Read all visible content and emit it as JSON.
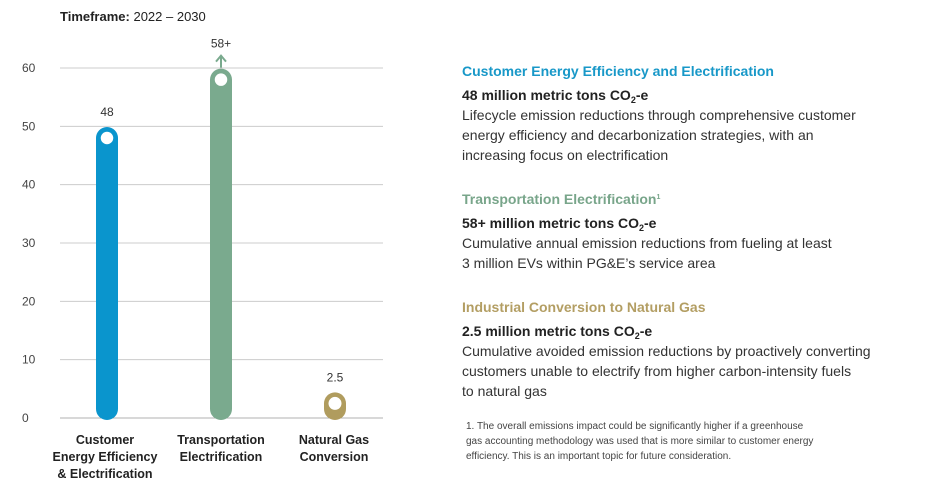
{
  "timeframe": {
    "label": "Timeframe:",
    "value": "2022 – 2030"
  },
  "colors": {
    "blue": "#0A95CD",
    "green": "#7AAA8E",
    "gold": "#B09C5E",
    "grid": "#cccccc"
  },
  "chart_data": {
    "type": "bar",
    "categories": [
      [
        "Customer",
        "Energy Efficiency",
        "& Electrification"
      ],
      [
        "Transportation",
        "Electrification"
      ],
      [
        "Natural Gas",
        "Conversion"
      ]
    ],
    "values": [
      48,
      58,
      2.5
    ],
    "data_labels": [
      "48",
      "58+",
      "2.5"
    ],
    "ylim": [
      0,
      60
    ],
    "yticks": [
      0,
      10,
      20,
      30,
      40,
      50,
      60
    ],
    "grid": true
  },
  "sections": [
    {
      "heading": "Customer Energy Efficiency and Electrification",
      "amount_a": "48 million metric tons CO",
      "amount_sub": "2",
      "amount_b": "-e",
      "desc_lines": [
        "Lifecycle emission reductions through comprehensive customer",
        "energy efficiency and decarbonization strategies, with an",
        "increasing focus on electrification"
      ]
    },
    {
      "heading": "Transportation Electrification",
      "heading_sup": "1",
      "amount_a": "58+ million metric tons CO",
      "amount_sub": "2",
      "amount_b": "-e",
      "desc_lines": [
        "Cumulative annual emission reductions from fueling at least",
        "3 million EVs within PG&E’s service area"
      ]
    },
    {
      "heading": "Industrial Conversion to Natural Gas",
      "amount_a": "2.5 million metric tons CO",
      "amount_sub": "2",
      "amount_b": "-e",
      "desc_lines": [
        "Cumulative avoided emission reductions by proactively converting",
        "customers unable to electrify from higher carbon-intensity fuels",
        "to natural gas"
      ]
    }
  ],
  "footnote": {
    "lines": [
      "1. The overall emissions impact could be significantly higher if a greenhouse",
      "gas accounting methodology was used that is more similar to customer energy",
      "efficiency. This is an important topic for future consideration."
    ]
  }
}
